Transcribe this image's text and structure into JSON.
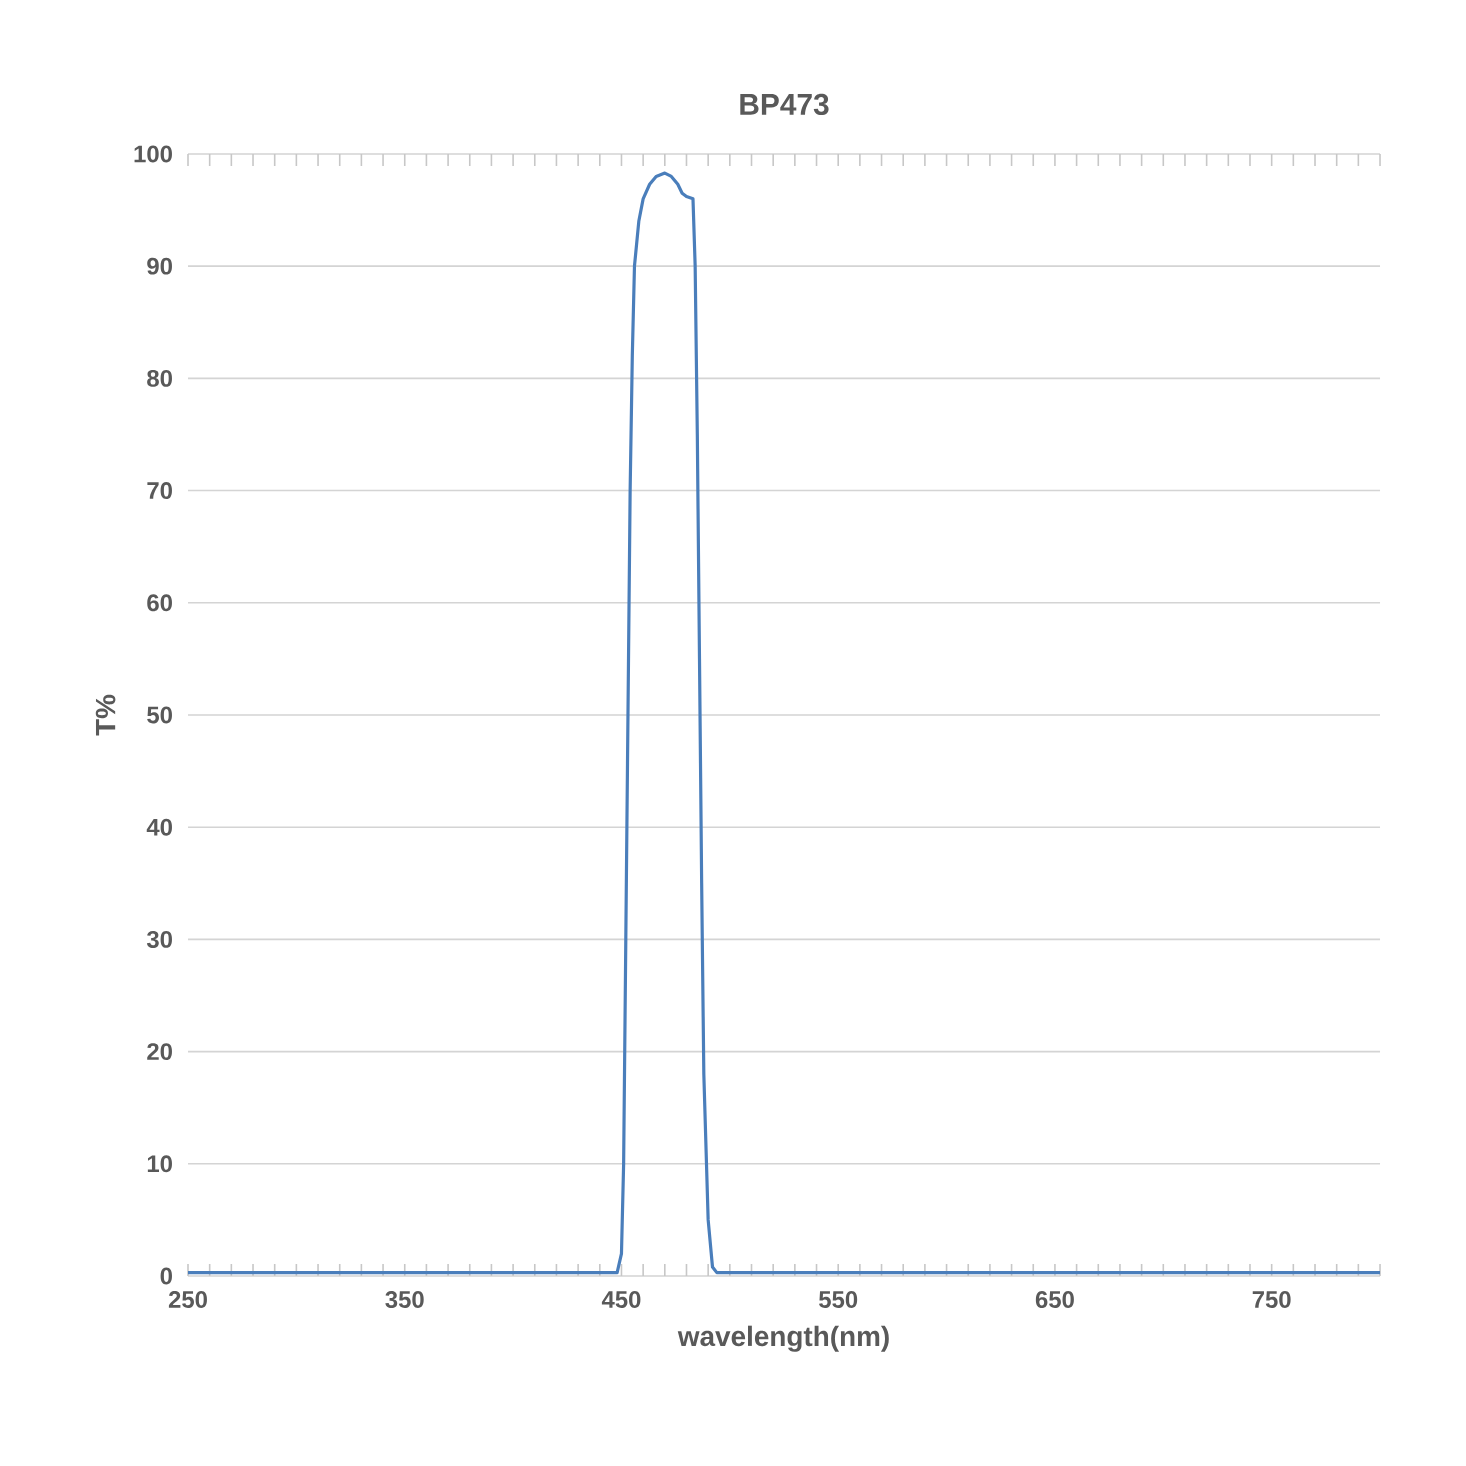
{
  "chart_data": {
    "type": "line",
    "title": "BP473",
    "xlabel": "wavelength(nm)",
    "ylabel": "T%",
    "xlim": [
      250,
      800
    ],
    "ylim": [
      0,
      100
    ],
    "xticks": [
      250,
      {
        "value": 260,
        "label": null
      },
      {
        "value": 270,
        "label": null
      },
      {
        "value": 280,
        "label": null
      },
      {
        "value": 290,
        "label": null
      },
      {
        "value": 300,
        "label": null
      },
      {
        "value": 310,
        "label": null
      },
      {
        "value": 320,
        "label": null
      },
      {
        "value": 330,
        "label": null
      },
      {
        "value": 340,
        "label": null
      },
      350,
      {
        "value": 360,
        "label": null
      },
      {
        "value": 370,
        "label": null
      },
      {
        "value": 380,
        "label": null
      },
      {
        "value": 390,
        "label": null
      },
      {
        "value": 400,
        "label": null
      },
      {
        "value": 410,
        "label": null
      },
      {
        "value": 420,
        "label": null
      },
      {
        "value": 430,
        "label": null
      },
      {
        "value": 440,
        "label": null
      },
      450,
      {
        "value": 460,
        "label": null
      },
      {
        "value": 470,
        "label": null
      },
      {
        "value": 480,
        "label": null
      },
      {
        "value": 490,
        "label": null
      },
      {
        "value": 500,
        "label": null
      },
      {
        "value": 510,
        "label": null
      },
      {
        "value": 520,
        "label": null
      },
      {
        "value": 530,
        "label": null
      },
      {
        "value": 540,
        "label": null
      },
      550,
      {
        "value": 560,
        "label": null
      },
      {
        "value": 570,
        "label": null
      },
      {
        "value": 580,
        "label": null
      },
      {
        "value": 590,
        "label": null
      },
      {
        "value": 600,
        "label": null
      },
      {
        "value": 610,
        "label": null
      },
      {
        "value": 620,
        "label": null
      },
      {
        "value": 630,
        "label": null
      },
      {
        "value": 640,
        "label": null
      },
      650,
      {
        "value": 660,
        "label": null
      },
      {
        "value": 670,
        "label": null
      },
      {
        "value": 680,
        "label": null
      },
      {
        "value": 690,
        "label": null
      },
      {
        "value": 700,
        "label": null
      },
      {
        "value": 710,
        "label": null
      },
      {
        "value": 720,
        "label": null
      },
      {
        "value": 730,
        "label": null
      },
      {
        "value": 740,
        "label": null
      },
      750,
      {
        "value": 760,
        "label": null
      },
      {
        "value": 770,
        "label": null
      },
      {
        "value": 780,
        "label": null
      },
      {
        "value": 790,
        "label": null
      },
      {
        "value": 800,
        "label": null
      }
    ],
    "yticks": [
      0,
      10,
      20,
      30,
      40,
      50,
      60,
      70,
      80,
      90,
      100
    ],
    "grid": "y",
    "series": [
      {
        "color": "#4a7ebb",
        "x": [
          250,
          448,
          450,
          451,
          452,
          453,
          454,
          455,
          456,
          458,
          460,
          463,
          466,
          470,
          473,
          476,
          478,
          480,
          483,
          484,
          485,
          486,
          487,
          488,
          490,
          492,
          494,
          800
        ],
        "values": [
          0.3,
          0.3,
          2,
          10,
          30,
          50,
          70,
          82,
          90,
          94,
          96,
          97.3,
          98,
          98.3,
          98,
          97.3,
          96.5,
          96.2,
          96,
          90,
          75,
          55,
          35,
          18,
          5,
          0.8,
          0.3,
          0.3
        ]
      }
    ]
  }
}
